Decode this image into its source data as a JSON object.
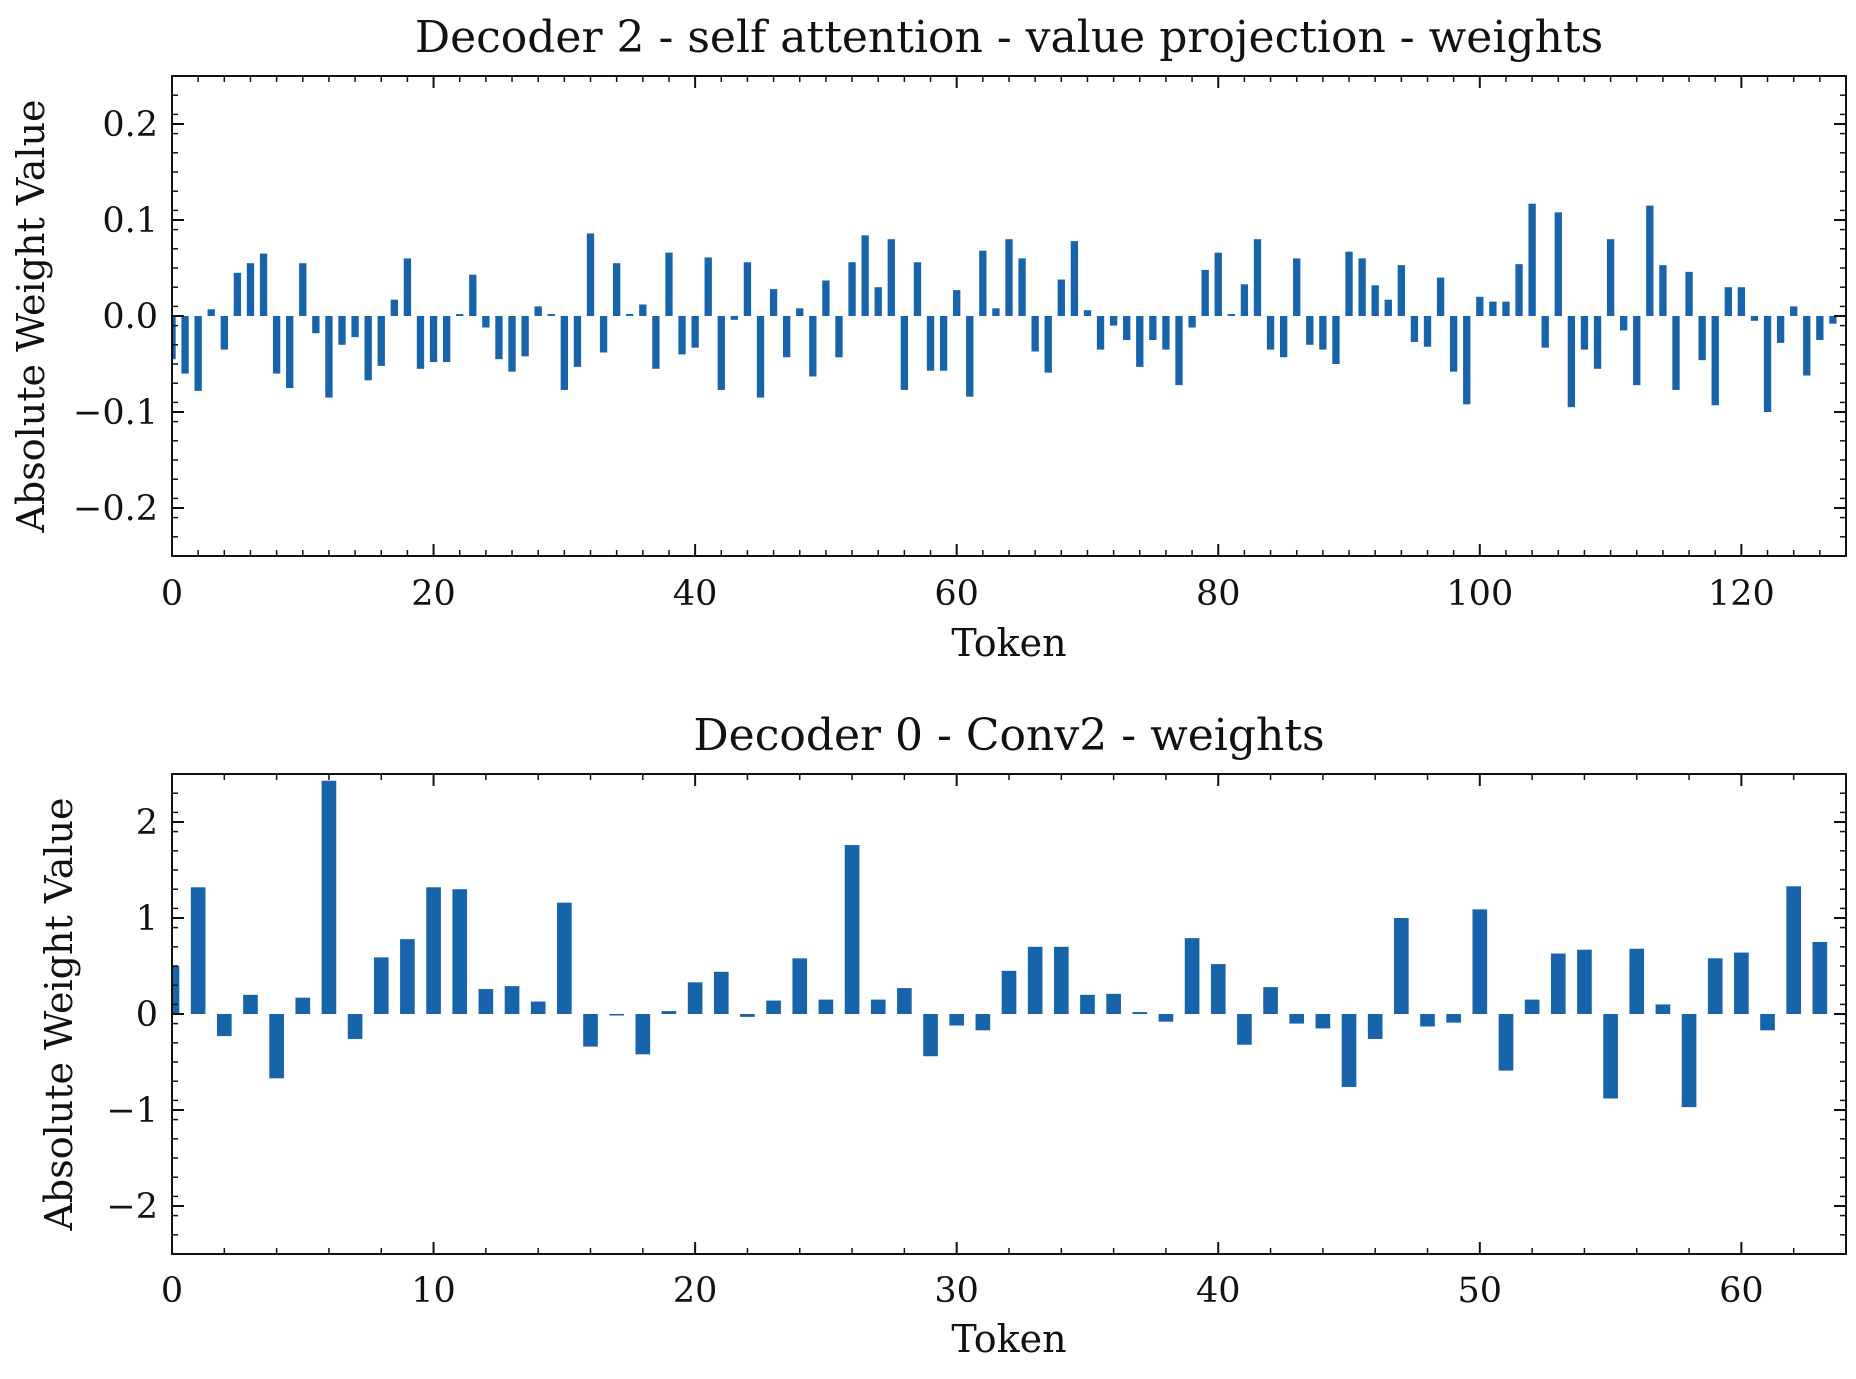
{
  "colors": {
    "bar": "#1764ab",
    "axis": "#111111",
    "background": "#ffffff"
  },
  "chart_data": [
    {
      "type": "bar",
      "title": "Decoder 2 - self attention - value projection - weights",
      "xlabel": "Token",
      "ylabel": "Absolute Weight Value",
      "xlim": [
        0,
        128
      ],
      "ylim": [
        -0.25,
        0.25
      ],
      "xticks": [
        0,
        20,
        40,
        60,
        80,
        100,
        120
      ],
      "yticks": [
        -0.2,
        -0.1,
        0.0,
        0.1,
        0.2
      ],
      "xtick_labels": [
        "0",
        "20",
        "40",
        "60",
        "80",
        "100",
        "120"
      ],
      "ytick_labels": [
        "−0.2",
        "−0.1",
        "0.0",
        "0.1",
        "0.2"
      ],
      "legend": "none",
      "grid": false,
      "values": [
        -0.045,
        -0.06,
        -0.078,
        0.007,
        -0.035,
        0.045,
        0.055,
        0.065,
        -0.06,
        -0.075,
        0.055,
        -0.018,
        -0.085,
        -0.03,
        -0.022,
        -0.067,
        -0.052,
        0.017,
        0.06,
        -0.055,
        -0.048,
        -0.048,
        0.002,
        0.043,
        -0.012,
        -0.045,
        -0.058,
        -0.042,
        0.01,
        0.002,
        -0.077,
        -0.053,
        0.086,
        -0.038,
        0.055,
        0.002,
        0.012,
        -0.055,
        0.066,
        -0.04,
        -0.033,
        0.061,
        -0.077,
        -0.004,
        0.056,
        -0.085,
        0.028,
        -0.043,
        0.008,
        -0.063,
        0.037,
        -0.043,
        0.056,
        0.084,
        0.03,
        0.08,
        -0.077,
        0.056,
        -0.057,
        -0.057,
        0.027,
        -0.084,
        0.068,
        0.008,
        0.08,
        0.06,
        -0.037,
        -0.059,
        0.038,
        0.078,
        0.006,
        -0.035,
        -0.01,
        -0.025,
        -0.053,
        -0.025,
        -0.035,
        -0.072,
        -0.012,
        0.048,
        0.066,
        0.002,
        0.033,
        0.08,
        -0.035,
        -0.043,
        0.06,
        -0.03,
        -0.035,
        -0.05,
        0.067,
        0.06,
        0.032,
        0.017,
        0.053,
        -0.027,
        -0.032,
        0.04,
        -0.058,
        -0.092,
        0.02,
        0.015,
        0.015,
        0.054,
        0.117,
        -0.033,
        0.108,
        -0.095,
        -0.035,
        -0.055,
        0.08,
        -0.015,
        -0.072,
        0.115,
        0.053,
        -0.077,
        0.046,
        -0.046,
        -0.093,
        0.03,
        0.03,
        -0.005,
        -0.1,
        -0.028,
        0.01,
        -0.062,
        -0.025,
        -0.008
      ]
    },
    {
      "type": "bar",
      "title": "Decoder 0 - Conv2 - weights",
      "xlabel": "Token",
      "ylabel": "Absolute Weight Value",
      "xlim": [
        0,
        64
      ],
      "ylim": [
        -2.5,
        2.5
      ],
      "xticks": [
        0,
        10,
        20,
        30,
        40,
        50,
        60
      ],
      "yticks": [
        -2,
        -1,
        0,
        1,
        2
      ],
      "xtick_labels": [
        "0",
        "10",
        "20",
        "30",
        "40",
        "50",
        "60"
      ],
      "ytick_labels": [
        "−2",
        "−1",
        "0",
        "1",
        "2"
      ],
      "legend": "none",
      "grid": false,
      "values": [
        0.5,
        1.32,
        -0.23,
        0.2,
        -0.67,
        0.17,
        2.43,
        -0.26,
        0.59,
        0.78,
        1.32,
        1.3,
        0.26,
        0.29,
        0.13,
        1.16,
        -0.34,
        0.0,
        -0.42,
        0.03,
        0.33,
        0.44,
        -0.03,
        0.14,
        0.58,
        0.15,
        1.76,
        0.15,
        0.27,
        -0.44,
        -0.12,
        -0.17,
        0.45,
        0.7,
        0.7,
        0.2,
        0.21,
        0.02,
        -0.08,
        0.79,
        0.52,
        -0.32,
        0.28,
        -0.1,
        -0.15,
        -0.76,
        -0.26,
        1.0,
        -0.13,
        -0.09,
        1.09,
        -0.59,
        0.15,
        0.63,
        0.67,
        -0.88,
        0.68,
        0.1,
        -0.97,
        0.58,
        0.64,
        -0.17,
        1.33,
        0.75
      ]
    }
  ]
}
